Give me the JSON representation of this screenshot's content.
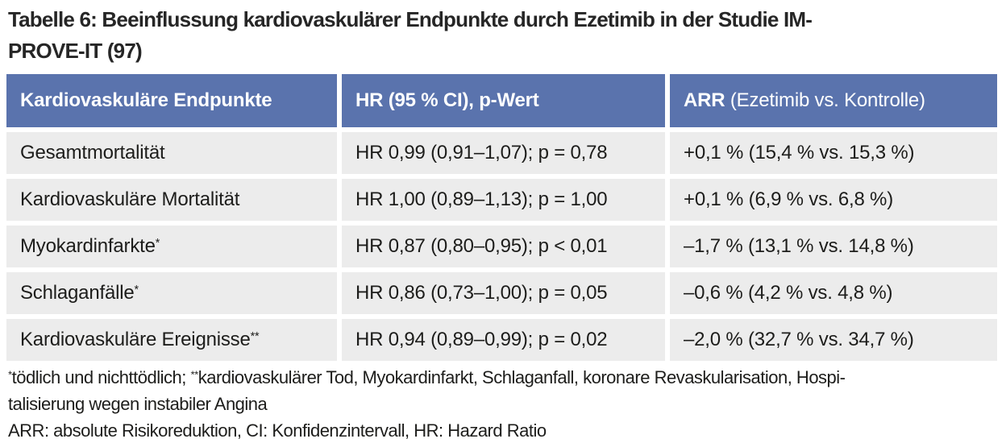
{
  "title": {
    "line1": "Tabelle 6: Beeinflussung kardiovaskulärer Endpunkte durch  Ezetimib in der Studie IM-",
    "line2": "PROVE-IT (97)"
  },
  "table": {
    "header": {
      "endpoints": "Kardiovaskuläre Endpunkte",
      "hr": "HR (95 % CI), p-Wert",
      "arr_bold": "ARR",
      "arr_rest": " (Ezetimib vs. Kontrolle)"
    },
    "rows": [
      {
        "endpoint": "Gesamtmortalität",
        "sup": "",
        "hr": "HR 0,99 (0,91–1,07); p = 0,78",
        "arr": "+0,1 % (15,4 % vs. 15,3 %)"
      },
      {
        "endpoint": "Kardiovaskuläre Mortalität",
        "sup": "",
        "hr": "HR 1,00 (0,89–1,13); p = 1,00",
        "arr": "+0,1 % (6,9 % vs. 6,8 %)"
      },
      {
        "endpoint": "Myokardinfarkte",
        "sup": "*",
        "hr": "HR 0,87 (0,80–0,95); p < 0,01",
        "arr": "–1,7 % (13,1 % vs. 14,8 %)"
      },
      {
        "endpoint": "Schlaganfälle",
        "sup": "*",
        "hr": "HR 0,86 (0,73–1,00); p = 0,05",
        "arr": "–0,6 % (4,2 % vs. 4,8 %)"
      },
      {
        "endpoint": "Kardiovaskuläre Ereignisse",
        "sup": "**",
        "hr": "HR 0,94 (0,89–0,99); p = 0,02",
        "arr": "–2,0 % (32,7 % vs. 34,7 %)"
      }
    ]
  },
  "footnotes": {
    "sup1": "*",
    "text1": "tödlich und nichttödlich; ",
    "sup2": "**",
    "text2": "kardiovaskulärer Tod, Myokardinfarkt, Schlaganfall, koronare Revaskularisation, Hospi-",
    "line2": "talisierung wegen instabiler Angina",
    "abbreviations": "ARR: absolute Risikoreduktion, CI: Konfidenzintervall, HR: Hazard Ratio"
  },
  "colors": {
    "header_bg": "#5a73ad",
    "row_bg": "#ececec",
    "text": "#1d1d1b"
  }
}
